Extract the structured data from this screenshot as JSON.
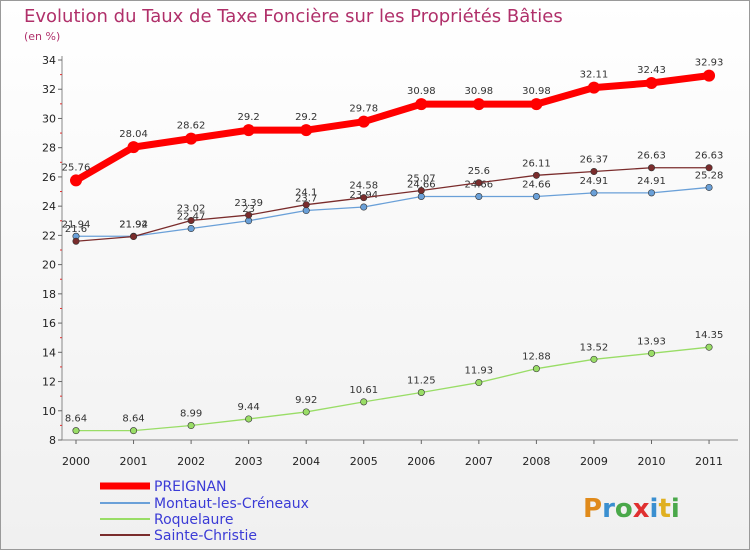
{
  "chart_data": {
    "type": "line",
    "title": "Evolution du Taux de Taxe Foncière sur les Propriétés Bâties",
    "subtitle": "(en %)",
    "x": [
      "2000",
      "2001",
      "2002",
      "2003",
      "2004",
      "2005",
      "2006",
      "2007",
      "2008",
      "2009",
      "2010",
      "2011"
    ],
    "ylim": [
      8,
      34
    ],
    "yticks": [
      8,
      10,
      12,
      14,
      16,
      18,
      20,
      22,
      24,
      26,
      28,
      30,
      32,
      34
    ],
    "grid": false,
    "legend_position": "bottom-left",
    "series": [
      {
        "name": "PREIGNAN",
        "color": "#ff0000",
        "values": [
          25.76,
          28.04,
          28.62,
          29.2,
          29.2,
          29.78,
          30.98,
          30.98,
          30.98,
          32.11,
          32.43,
          32.93
        ],
        "labels": [
          "25.76",
          "28.04",
          "28.62",
          "29.2",
          "29.2",
          "29.78",
          "30.98",
          "30.98",
          "30.98",
          "32.11",
          "32.43",
          "32.93"
        ]
      },
      {
        "name": "Montaut-les-Créneaux",
        "color": "#6aa0d8",
        "values": [
          21.94,
          21.94,
          22.47,
          23.0,
          23.7,
          23.94,
          24.66,
          24.66,
          24.66,
          24.91,
          24.91,
          25.28
        ],
        "labels": [
          "21.94",
          "21.94",
          "22.47",
          "23",
          "23.7",
          "23.94",
          "24.66",
          "24.66",
          "24.66",
          "24.91",
          "24.91",
          "25.28"
        ]
      },
      {
        "name": "Roquelaure",
        "color": "#99dd66",
        "values": [
          8.64,
          8.64,
          8.99,
          9.44,
          9.92,
          10.61,
          11.25,
          11.93,
          12.88,
          13.52,
          13.93,
          14.35
        ],
        "labels": [
          "8.64",
          "8.64",
          "8.99",
          "9.44",
          "9.92",
          "10.61",
          "11.25",
          "11.93",
          "12.88",
          "13.52",
          "13.93",
          "14.35"
        ]
      },
      {
        "name": "Sainte-Christie",
        "color": "#7a2c2c",
        "values": [
          21.6,
          21.92,
          23.02,
          23.39,
          24.1,
          24.58,
          25.07,
          25.6,
          26.11,
          26.37,
          26.63,
          26.63
        ],
        "labels": [
          "21.6",
          "21.92",
          "23.02",
          "23.39",
          "24.1",
          "24.58",
          "25.07",
          "25.6",
          "26.11",
          "26.37",
          "26.63",
          "26.63"
        ]
      }
    ]
  },
  "logo": {
    "text": "Proxiti"
  }
}
